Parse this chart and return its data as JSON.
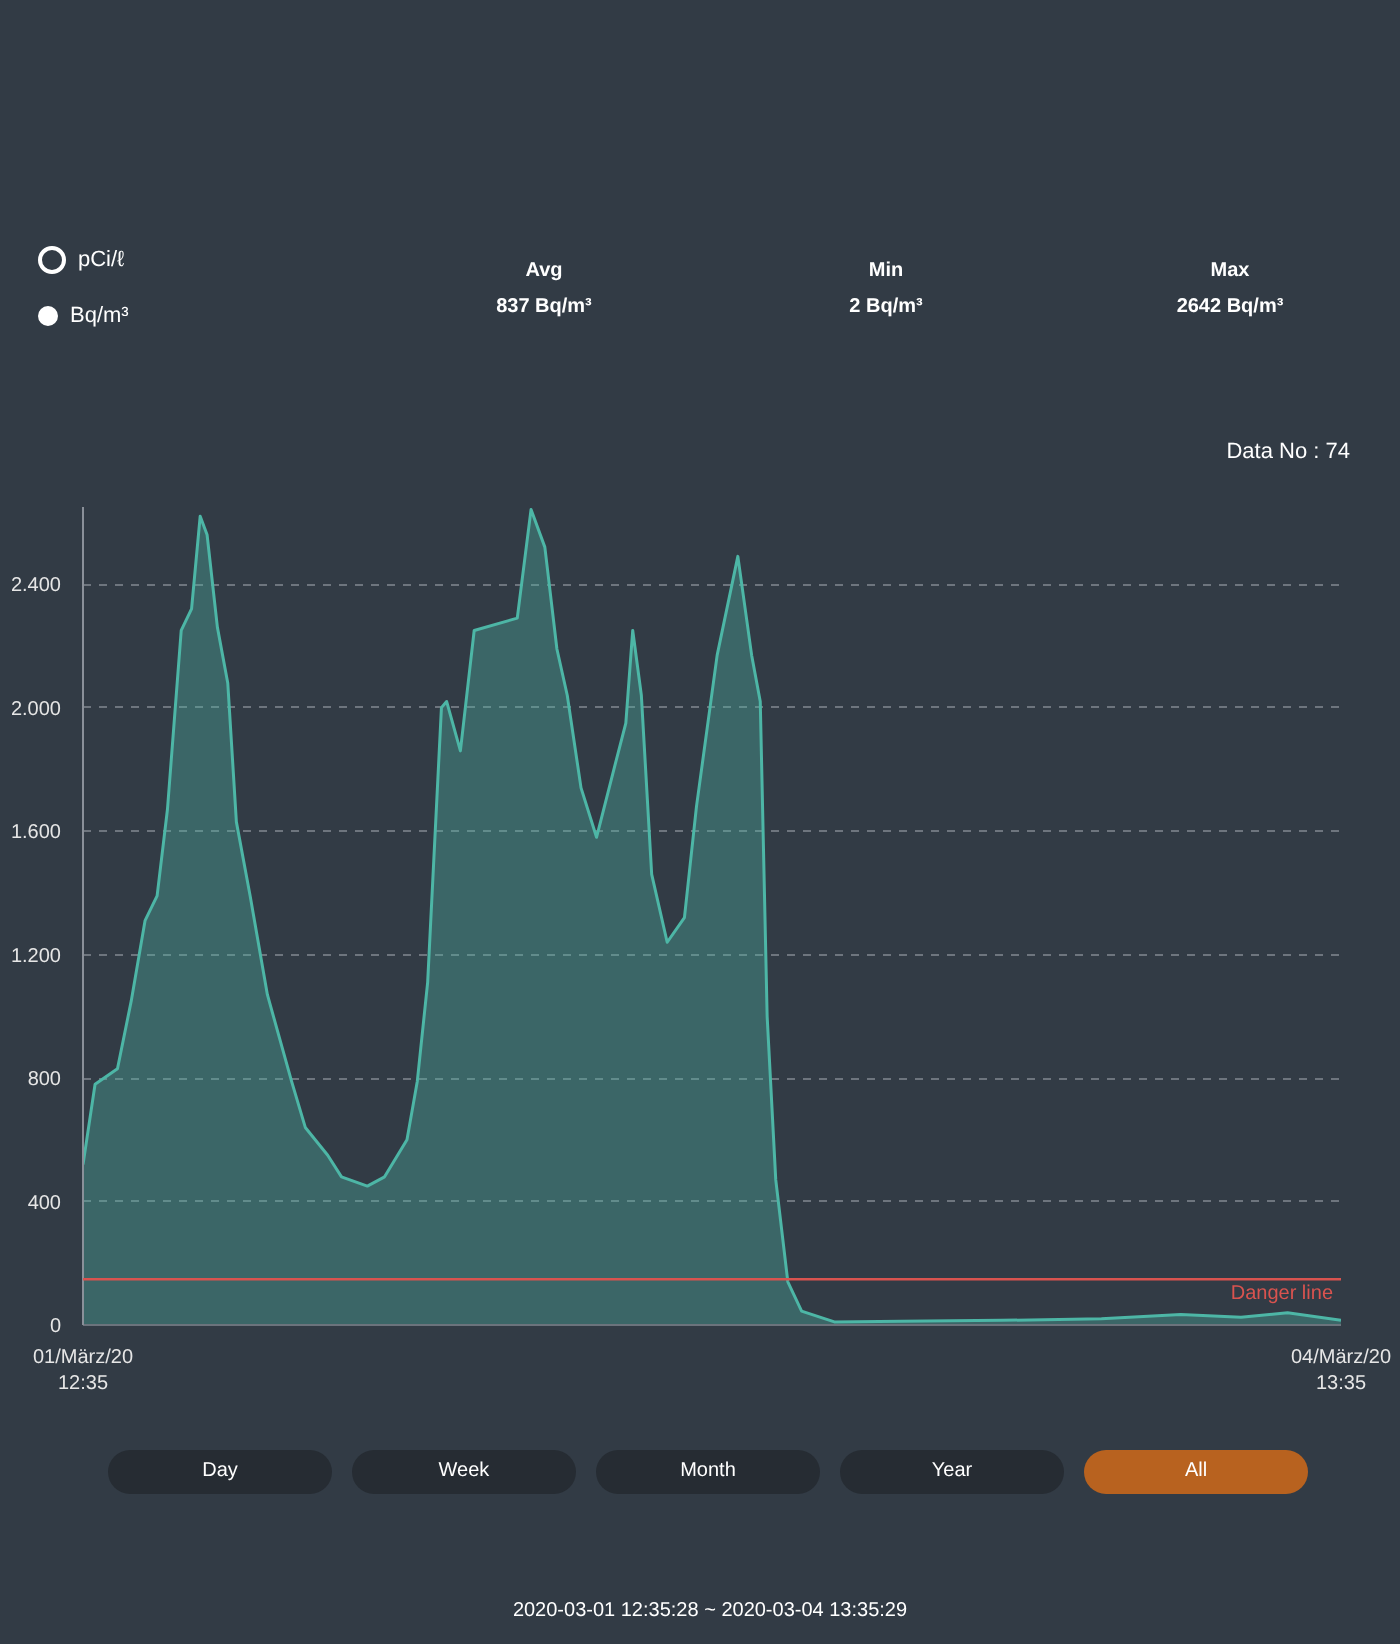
{
  "chart_data": {
    "type": "area",
    "x": [
      "2020-03-01T12:35",
      "2020-03-01T13:17",
      "2020-03-01T14:35",
      "2020-03-01T15:23",
      "2020-03-01T16:11",
      "2020-03-01T16:53",
      "2020-03-01T17:29",
      "2020-03-01T18:17",
      "2020-03-01T18:53",
      "2020-03-01T19:23",
      "2020-03-01T19:47",
      "2020-03-01T20:23",
      "2020-03-01T20:59",
      "2020-03-01T21:29",
      "2020-03-01T22:17",
      "2020-03-01T23:17",
      "2020-03-02T00:41",
      "2020-03-02T01:29",
      "2020-03-02T02:47",
      "2020-03-02T03:35",
      "2020-03-02T05:05",
      "2020-03-02T06:05",
      "2020-03-02T07:23",
      "2020-03-02T07:59",
      "2020-03-02T08:35",
      "2020-03-02T09:23",
      "2020-03-02T09:41",
      "2020-03-02T10:29",
      "2020-03-02T11:17",
      "2020-03-02T13:47",
      "2020-03-02T14:35",
      "2020-03-02T15:23",
      "2020-03-02T16:05",
      "2020-03-02T16:41",
      "2020-03-02T17:29",
      "2020-03-02T18:23",
      "2020-03-02T19:29",
      "2020-03-02T20:05",
      "2020-03-02T20:29",
      "2020-03-02T20:59",
      "2020-03-02T21:35",
      "2020-03-02T22:29",
      "2020-03-02T23:29",
      "2020-03-03T00:11",
      "2020-03-03T01:23",
      "2020-03-03T02:35",
      "2020-03-03T03:23",
      "2020-03-03T03:53",
      "2020-03-03T04:17",
      "2020-03-03T04:47",
      "2020-03-03T05:29",
      "2020-03-03T06:17",
      "2020-03-03T08:11",
      "2020-03-03T12:05",
      "2020-03-03T17:53",
      "2020-03-03T23:41",
      "2020-03-04T04:17",
      "2020-03-04T07:47",
      "2020-03-04T10:29",
      "2020-03-04T13:35"
    ],
    "series": [
      {
        "color": "#4db6a6",
        "values": [
          520,
          780,
          830,
          1050,
          1310,
          1390,
          1670,
          2250,
          2320,
          2620,
          2560,
          2260,
          2080,
          1630,
          1390,
          1070,
          790,
          640,
          550,
          480,
          450,
          480,
          600,
          790,
          1110,
          2000,
          2020,
          1860,
          2250,
          2290,
          2642,
          2520,
          2190,
          2040,
          1740,
          1580,
          1820,
          1950,
          2250,
          2040,
          1460,
          1240,
          1320,
          1680,
          2170,
          2490,
          2170,
          2020,
          1000,
          470,
          140,
          45,
          10,
          12,
          15,
          20,
          34,
          25,
          40,
          15
        ]
      }
    ],
    "xlim": [
      "2020-03-01T12:35",
      "2020-03-04T13:35"
    ],
    "xticks": [
      {
        "value": "2020-03-01T12:35",
        "label": "01/März/20\n12:35"
      },
      {
        "value": "2020-03-04T13:35",
        "label": "04/März/20\n13:35"
      }
    ],
    "ylim": [
      0,
      2650
    ],
    "yticks": [
      0,
      400,
      800,
      {
        "value": 1200,
        "label": "1.200"
      },
      {
        "value": 1600,
        "label": "1.600"
      },
      {
        "value": 2000,
        "label": "2.000"
      },
      {
        "value": 2400,
        "label": "2.400"
      }
    ],
    "grid": true,
    "ref_lines": [
      {
        "axis": "y",
        "value": 148,
        "label": "Danger line",
        "color": "#d9534f"
      }
    ],
    "annotations": [
      "pCi/ℓ",
      "Bq/m³",
      "Avg",
      "837 Bq/m³",
      "Min",
      "2 Bq/m³",
      "Max",
      "2642 Bq/m³",
      "Data No : 74",
      "Day",
      "Week",
      "Month",
      "Year",
      "All",
      "2020-03-01 12:35:28 ~ 2020-03-04 13:35:29"
    ]
  }
}
